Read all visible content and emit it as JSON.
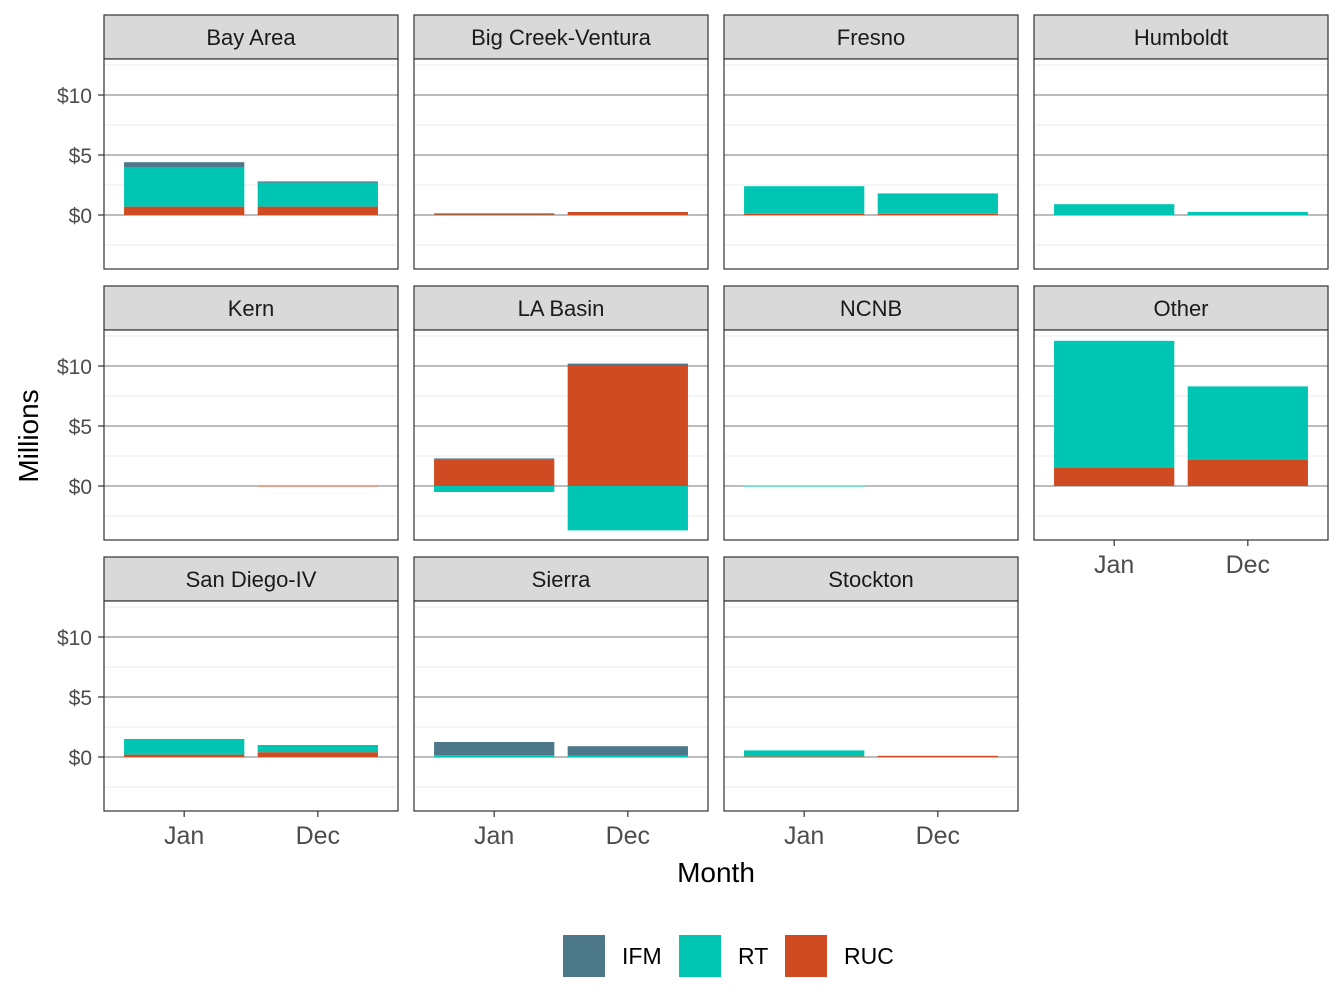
{
  "chart_data": {
    "type": "bar",
    "layout": "faceted stacked bar chart",
    "xlabel": "Month",
    "ylabel": "Millions",
    "ylim": [
      -4.5,
      13
    ],
    "yticks": [
      0,
      5,
      10
    ],
    "ytick_labels": [
      "$0",
      "$5",
      "$10"
    ],
    "categories": [
      "Jan",
      "Dec"
    ],
    "legend": {
      "position": "bottom",
      "entries": [
        {
          "name": "IFM",
          "color": "#4d788a"
        },
        {
          "name": "RT",
          "color": "#00c5b2"
        },
        {
          "name": "RUC",
          "color": "#d04a22"
        }
      ]
    },
    "facets": [
      {
        "name": "Bay Area",
        "series": [
          {
            "name": "IFM",
            "values": [
              0.4,
              0.1
            ]
          },
          {
            "name": "RT",
            "values": [
              3.3,
              2.0
            ]
          },
          {
            "name": "RUC",
            "values": [
              0.7,
              0.7
            ]
          }
        ]
      },
      {
        "name": "Big Creek-Ventura",
        "series": [
          {
            "name": "IFM",
            "values": [
              0.0,
              0.0
            ]
          },
          {
            "name": "RT",
            "values": [
              0.05,
              0.0
            ]
          },
          {
            "name": "RUC",
            "values": [
              0.1,
              0.25
            ]
          }
        ]
      },
      {
        "name": "Fresno",
        "series": [
          {
            "name": "IFM",
            "values": [
              0.0,
              0.0
            ]
          },
          {
            "name": "RT",
            "values": [
              2.3,
              1.7
            ]
          },
          {
            "name": "RUC",
            "values": [
              0.1,
              0.1
            ]
          }
        ]
      },
      {
        "name": "Humboldt",
        "series": [
          {
            "name": "IFM",
            "values": [
              0.0,
              0.0
            ]
          },
          {
            "name": "RT",
            "values": [
              0.9,
              0.25
            ]
          },
          {
            "name": "RUC",
            "values": [
              0.0,
              0.0
            ]
          }
        ]
      },
      {
        "name": "Kern",
        "series": [
          {
            "name": "IFM",
            "values": [
              0.0,
              0.0
            ]
          },
          {
            "name": "RT",
            "values": [
              0.0,
              0.0
            ]
          },
          {
            "name": "RUC",
            "values": [
              0.0,
              0.04
            ]
          }
        ]
      },
      {
        "name": "LA Basin",
        "series": [
          {
            "name": "IFM",
            "values": [
              0.1,
              0.2
            ]
          },
          {
            "name": "RT",
            "values": [
              -0.5,
              -3.7
            ]
          },
          {
            "name": "RUC",
            "values": [
              2.2,
              10.0
            ]
          }
        ]
      },
      {
        "name": "NCNB",
        "series": [
          {
            "name": "IFM",
            "values": [
              0.0,
              0.0
            ]
          },
          {
            "name": "RT",
            "values": [
              0.04,
              0.0
            ]
          },
          {
            "name": "RUC",
            "values": [
              0.0,
              0.0
            ]
          }
        ]
      },
      {
        "name": "Other",
        "series": [
          {
            "name": "IFM",
            "values": [
              0.0,
              0.0
            ]
          },
          {
            "name": "RT",
            "values": [
              10.6,
              6.1
            ]
          },
          {
            "name": "RUC",
            "values": [
              1.5,
              2.2
            ]
          }
        ]
      },
      {
        "name": "San Diego-IV",
        "series": [
          {
            "name": "IFM",
            "values": [
              0.0,
              0.0
            ]
          },
          {
            "name": "RT",
            "values": [
              1.3,
              0.6
            ]
          },
          {
            "name": "RUC",
            "values": [
              0.2,
              0.4
            ]
          }
        ]
      },
      {
        "name": "Sierra",
        "series": [
          {
            "name": "IFM",
            "values": [
              1.1,
              0.8
            ]
          },
          {
            "name": "RT",
            "values": [
              0.15,
              0.1
            ]
          },
          {
            "name": "RUC",
            "values": [
              0.0,
              0.0
            ]
          }
        ]
      },
      {
        "name": "Stockton",
        "series": [
          {
            "name": "IFM",
            "values": [
              0.0,
              0.0
            ]
          },
          {
            "name": "RT",
            "values": [
              0.5,
              0.0
            ]
          },
          {
            "name": "RUC",
            "values": [
              0.05,
              0.1
            ]
          }
        ]
      }
    ]
  }
}
